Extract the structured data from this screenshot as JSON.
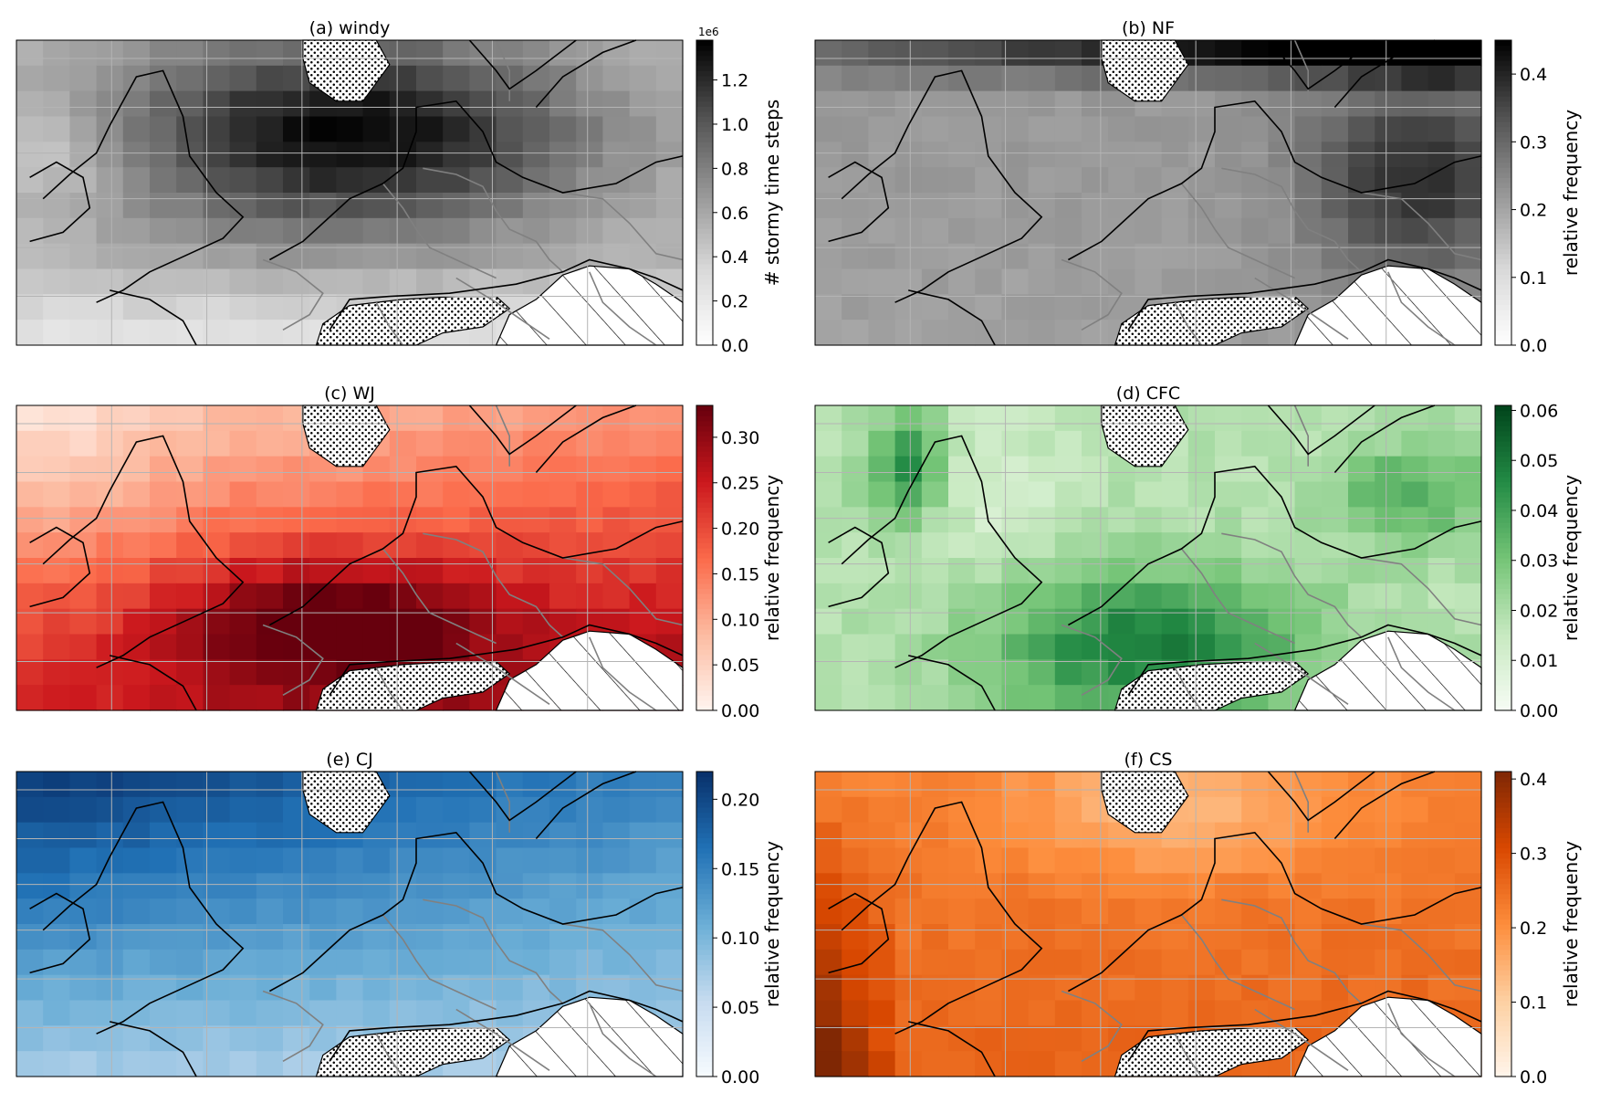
{
  "chart_data": [
    {
      "type": "heatmap",
      "title": "(a) windy",
      "colormap": "Greys",
      "colorbar": {
        "label": "# stormy time steps",
        "ticks": [
          "0.0",
          "0.2",
          "0.4",
          "0.6",
          "0.8",
          "1.0",
          "1.2"
        ],
        "range": [
          0,
          1.38
        ],
        "offset_text": "1e6"
      },
      "masked_regions": [
        "stippled high terrain",
        "hatched no-data area (southeast)"
      ]
    },
    {
      "type": "heatmap",
      "title": "(b) NF",
      "colormap": "Greys",
      "colorbar": {
        "label": "relative frequency",
        "ticks": [
          "0.0",
          "0.1",
          "0.2",
          "0.3",
          "0.4"
        ],
        "range": [
          0,
          0.45
        ]
      },
      "masked_regions": [
        "stippled high terrain",
        "hatched no-data area (southeast)"
      ]
    },
    {
      "type": "heatmap",
      "title": "(c) WJ",
      "colormap": "Reds",
      "colorbar": {
        "label": "relative frequency",
        "ticks": [
          "0.00",
          "0.05",
          "0.10",
          "0.15",
          "0.20",
          "0.25",
          "0.30"
        ],
        "range": [
          0,
          0.335
        ]
      },
      "masked_regions": [
        "stippled high terrain",
        "hatched no-data area (southeast)"
      ]
    },
    {
      "type": "heatmap",
      "title": "(d) CFC",
      "colormap": "Greens",
      "colorbar": {
        "label": "relative frequency",
        "ticks": [
          "0.00",
          "0.01",
          "0.02",
          "0.03",
          "0.04",
          "0.05",
          "0.06"
        ],
        "range": [
          0,
          0.061
        ]
      },
      "masked_regions": [
        "stippled high terrain",
        "hatched no-data area (southeast)"
      ]
    },
    {
      "type": "heatmap",
      "title": "(e) CJ",
      "colormap": "Blues",
      "colorbar": {
        "label": "relative frequency",
        "ticks": [
          "0.00",
          "0.05",
          "0.10",
          "0.15",
          "0.20"
        ],
        "range": [
          0,
          0.22
        ]
      },
      "masked_regions": [
        "stippled high terrain",
        "hatched no-data area (southeast)"
      ]
    },
    {
      "type": "heatmap",
      "title": "(f) CS",
      "colormap": "Oranges",
      "colorbar": {
        "label": "relative frequency",
        "ticks": [
          "0.0",
          "0.1",
          "0.2",
          "0.3",
          "0.4"
        ],
        "range": [
          0,
          0.41
        ]
      },
      "masked_regions": [
        "stippled high terrain",
        "hatched no-data area (southeast)"
      ]
    }
  ]
}
